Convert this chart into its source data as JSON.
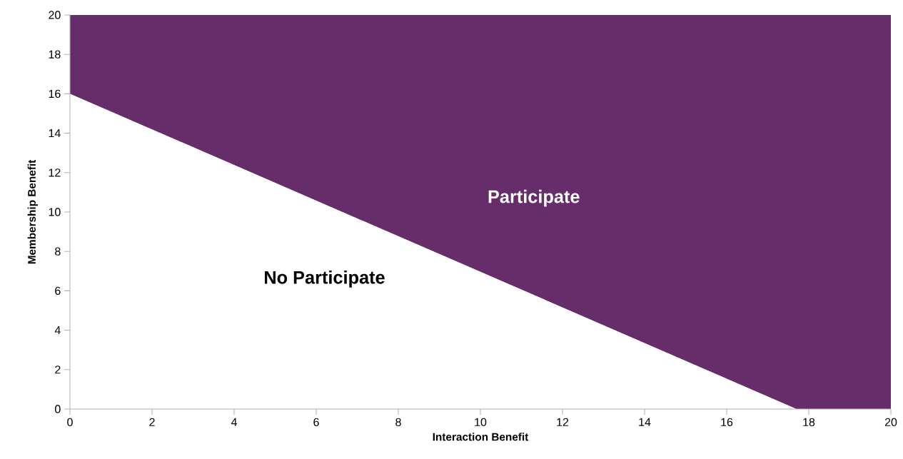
{
  "chart_data": {
    "type": "area",
    "stacked": true,
    "xlabel": "Interaction Benefit",
    "ylabel": "Membership Benefit",
    "x": [
      0,
      17.7,
      20
    ],
    "series": [
      {
        "color": "#ffffff",
        "values": [
          16,
          0,
          0
        ]
      },
      {
        "color": "#662d6a",
        "values": [
          4,
          20,
          20
        ]
      }
    ],
    "xlim": [
      0,
      20
    ],
    "ylim": [
      0,
      20
    ],
    "xticks": [
      0,
      2,
      4,
      6,
      8,
      10,
      12,
      14,
      16,
      18,
      20
    ],
    "yticks": [
      0,
      2,
      4,
      6,
      8,
      10,
      12,
      14,
      16,
      18,
      20
    ],
    "grid": false,
    "annotations": [
      "Participate",
      "No Participate"
    ]
  }
}
